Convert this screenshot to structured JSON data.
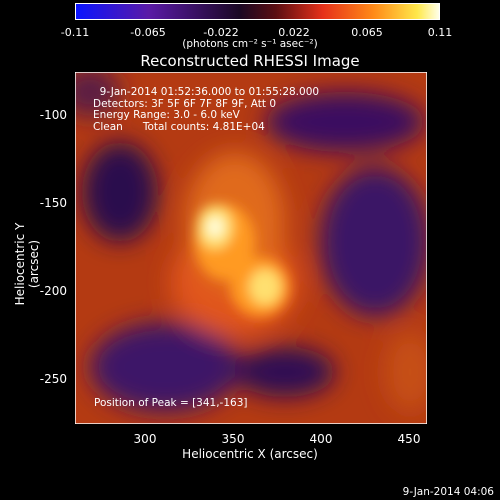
{
  "colorbar": {
    "ticks": [
      "-0.11",
      "-0.065",
      "-0.022",
      "0.022",
      "0.065",
      "0.11"
    ],
    "units": "(photons cm⁻² s⁻¹ asec⁻²)"
  },
  "plot": {
    "title": "Reconstructed RHESSI Image",
    "overlay_lines": [
      "  9-Jan-2014 01:52:36.000 to 01:55:28.000",
      "Detectors: 3F 5F 6F 7F 8F 9F, Att 0",
      "Energy Range: 3.0 - 6.0 keV",
      "Clean      Total counts: 4.81E+04"
    ],
    "peak_text": "Position of Peak = [341,-163]",
    "xlabel": "Heliocentric X (arcsec)",
    "ylabel": "Heliocentric Y (arcsec)",
    "xticks": [
      "300",
      "350",
      "400",
      "450"
    ],
    "yticks": [
      "-100",
      "-150",
      "-200",
      "-250"
    ],
    "x_range": [
      265,
      465
    ],
    "y_range": [
      -275,
      -75
    ]
  },
  "footer": {
    "timestamp": "9-Jan-2014 04:06"
  }
}
